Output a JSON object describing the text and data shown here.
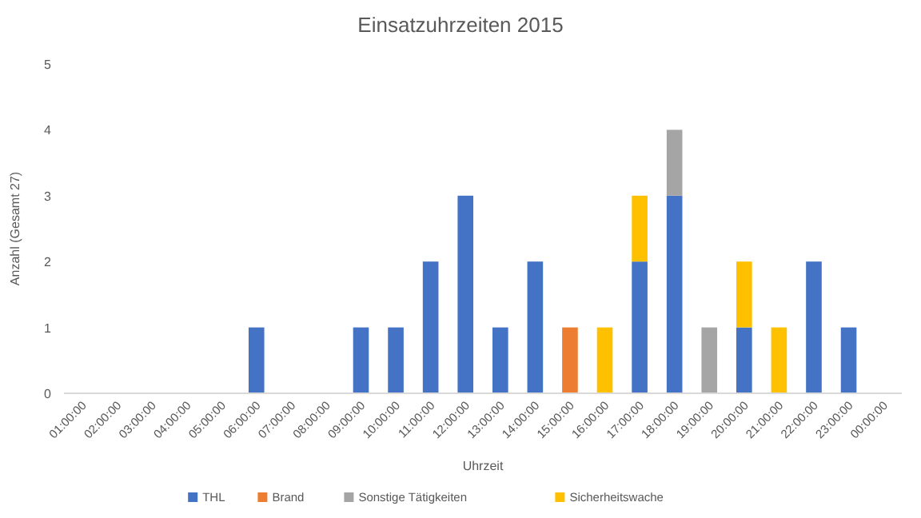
{
  "chart_data": {
    "type": "bar",
    "title": "Einsatzuhrzeiten 2015",
    "xlabel": "Uhrzeit",
    "ylabel": "Anzahl (Gesamt 27)",
    "categories": [
      "01:00:00",
      "02:00:00",
      "03:00:00",
      "04:00:00",
      "05:00:00",
      "06:00:00",
      "07:00:00",
      "08:00:00",
      "09:00:00",
      "10:00:00",
      "11:00:00",
      "12:00:00",
      "13:00:00",
      "14:00:00",
      "15:00:00",
      "16:00:00",
      "17:00:00",
      "18:00:00",
      "19:00:00",
      "20:00:00",
      "21:00:00",
      "22:00:00",
      "23:00:00",
      "00:00:00"
    ],
    "stacked": true,
    "series": [
      {
        "name": "THL",
        "color": "#4472c4",
        "values": [
          0,
          0,
          0,
          0,
          0,
          1,
          0,
          0,
          1,
          1,
          2,
          3,
          1,
          2,
          0,
          0,
          2,
          3,
          0,
          1,
          0,
          2,
          1,
          0
        ]
      },
      {
        "name": "Brand",
        "color": "#ed7d31",
        "values": [
          0,
          0,
          0,
          0,
          0,
          0,
          0,
          0,
          0,
          0,
          0,
          0,
          0,
          0,
          1,
          0,
          0,
          0,
          0,
          0,
          0,
          0,
          0,
          0
        ]
      },
      {
        "name": "Sonstige Tätigkeiten",
        "color": "#a5a5a5",
        "values": [
          0,
          0,
          0,
          0,
          0,
          0,
          0,
          0,
          0,
          0,
          0,
          0,
          0,
          0,
          0,
          0,
          0,
          1,
          1,
          0,
          0,
          0,
          0,
          0
        ]
      },
      {
        "name": "Sicherheitswache",
        "color": "#ffc000",
        "values": [
          0,
          0,
          0,
          0,
          0,
          0,
          0,
          0,
          0,
          0,
          0,
          0,
          0,
          0,
          0,
          1,
          1,
          0,
          0,
          1,
          1,
          0,
          0,
          0
        ]
      }
    ],
    "ylim": [
      0,
      5
    ],
    "yticks": [
      0,
      1,
      2,
      3,
      4,
      5
    ],
    "grid": false,
    "legend": "bottom"
  }
}
